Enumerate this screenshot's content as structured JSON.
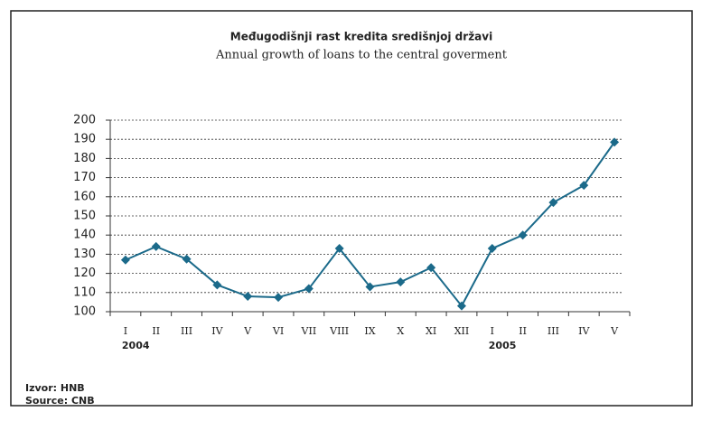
{
  "chart_data": {
    "type": "line",
    "title": "Međugodišnji rast kredita središnjoj državi",
    "subtitle": "Annual growth of loans to the central goverment",
    "categories": [
      "I",
      "II",
      "III",
      "IV",
      "V",
      "VI",
      "VII",
      "VIII",
      "IX",
      "X",
      "XI",
      "XII",
      "I",
      "II",
      "III",
      "IV",
      "V"
    ],
    "year_labels": [
      "2004",
      null,
      null,
      null,
      null,
      null,
      null,
      null,
      null,
      null,
      null,
      null,
      "2005",
      null,
      null,
      null,
      null
    ],
    "series": [
      {
        "name": null,
        "color": "#1b6a8a",
        "values": [
          127,
          134,
          127.5,
          114,
          108,
          107.5,
          112,
          133,
          113,
          115.5,
          123,
          103,
          133,
          140,
          157,
          166,
          188.5
        ]
      }
    ],
    "ylim": [
      100,
      200
    ],
    "yticks": [
      100,
      110,
      120,
      130,
      140,
      150,
      160,
      170,
      180,
      190,
      200
    ],
    "grid": true,
    "notes": [
      "Izvor: HNB",
      "Source: CNB"
    ]
  }
}
